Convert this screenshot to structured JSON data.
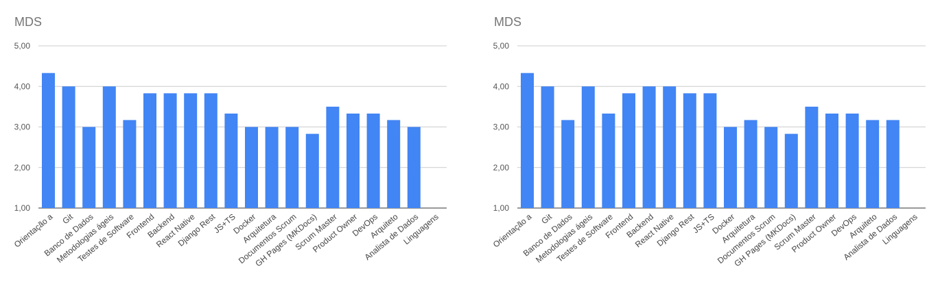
{
  "chart_data": [
    {
      "type": "bar",
      "title": "MDS",
      "categories": [
        "Orientação a",
        "Git",
        "Banco de Dados",
        "Metodologias ágeis",
        "Testes de Software",
        "Frontend",
        "Backend",
        "React Native",
        "Django Rest",
        "JS+TS",
        "Docker",
        "Arquitetura",
        "Documentos Scrum",
        "GH Pages (MKDocs)",
        "Scrum Master",
        "Product Owner",
        "DevOps",
        "Arquiteto",
        "Analista de Dados",
        "Linguagens"
      ],
      "values": [
        4.33,
        4.0,
        3.0,
        4.0,
        3.17,
        3.83,
        3.83,
        3.83,
        3.83,
        3.33,
        3.0,
        3.0,
        3.0,
        2.83,
        3.5,
        3.33,
        3.33,
        3.17,
        3.0,
        null
      ],
      "yticks": [
        "1,00",
        "2,00",
        "3,00",
        "4,00",
        "5,00"
      ],
      "ylim": [
        1,
        5
      ],
      "color": "#4285f4",
      "grid": true
    },
    {
      "type": "bar",
      "title": "MDS",
      "categories": [
        "Orientação a",
        "Git",
        "Banco de Dados",
        "Metodologias ágeis",
        "Testes de Software",
        "Frontend",
        "Backend",
        "React Native",
        "Django Rest",
        "JS+TS",
        "Docker",
        "Arquitetura",
        "Documentos Scrum",
        "GH Pages (MKDocs)",
        "Scrum Master",
        "Product Owner",
        "DevOps",
        "Arquiteto",
        "Analista de Dados",
        "Linguagens"
      ],
      "values": [
        4.33,
        4.0,
        3.17,
        4.0,
        3.33,
        3.83,
        4.0,
        4.0,
        3.83,
        3.83,
        3.0,
        3.17,
        3.0,
        2.83,
        3.5,
        3.33,
        3.33,
        3.17,
        3.17,
        null
      ],
      "yticks": [
        "1,00",
        "2,00",
        "3,00",
        "4,00",
        "5,00"
      ],
      "ylim": [
        1,
        5
      ],
      "color": "#4285f4",
      "grid": true
    }
  ]
}
